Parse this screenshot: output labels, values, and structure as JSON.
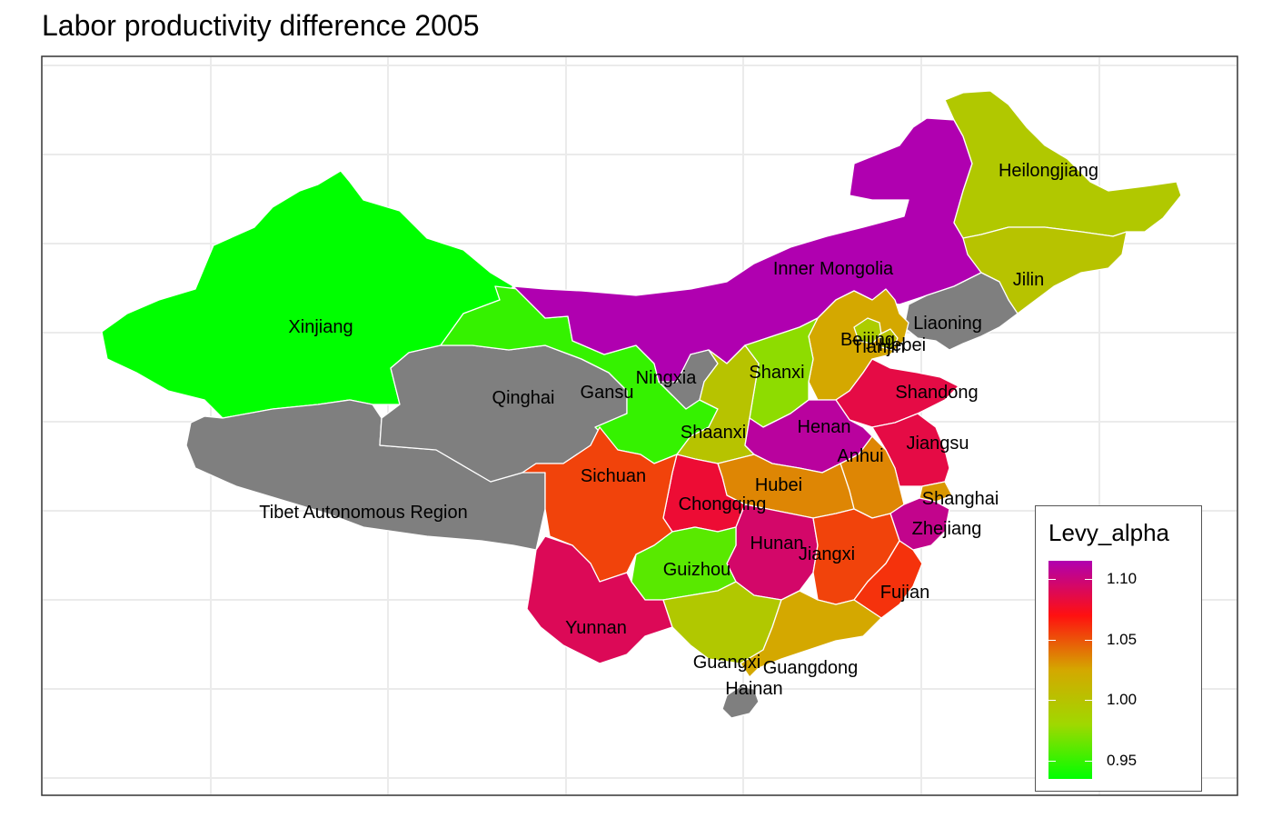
{
  "title": "Labor productivity difference 2005",
  "legend": {
    "title": "Levy_alpha",
    "ticks": [
      "1.10",
      "1.05",
      "1.00",
      "0.95"
    ],
    "tick_values": [
      1.1,
      1.05,
      1.0,
      0.95
    ],
    "min": 0.935,
    "max": 1.115,
    "stops": [
      "#00ff00",
      "#a0d800",
      "#d4a800",
      "#ff1010",
      "#b000b0"
    ],
    "na_color": "#7f7f7f"
  },
  "provinces": [
    {
      "name": "Xinjiang",
      "value": 0.935
    },
    {
      "name": "Tibet Autonomous Region",
      "value": null
    },
    {
      "name": "Qinghai",
      "value": null
    },
    {
      "name": "Gansu",
      "value": 0.95
    },
    {
      "name": "Inner Mongolia",
      "value": 1.115
    },
    {
      "name": "Heilongjiang",
      "value": 0.995
    },
    {
      "name": "Jilin",
      "value": 1.0
    },
    {
      "name": "Liaoning",
      "value": null
    },
    {
      "name": "Ningxia",
      "value": null
    },
    {
      "name": "Shaanxi",
      "value": 1.0
    },
    {
      "name": "Shanxi",
      "value": 0.975
    },
    {
      "name": "Hebei",
      "value": 1.025
    },
    {
      "name": "Beijing",
      "value": 0.99
    },
    {
      "name": "Tianjin",
      "value": 1.0
    },
    {
      "name": "Shandong",
      "value": 1.085
    },
    {
      "name": "Henan",
      "value": 1.11
    },
    {
      "name": "Jiangsu",
      "value": 1.085
    },
    {
      "name": "Anhui",
      "value": 1.035
    },
    {
      "name": "Shanghai",
      "value": 1.03
    },
    {
      "name": "Zhejiang",
      "value": 1.105
    },
    {
      "name": "Hubei",
      "value": 1.035
    },
    {
      "name": "Sichuan",
      "value": 1.055
    },
    {
      "name": "Chongqing",
      "value": 1.08
    },
    {
      "name": "Hunan",
      "value": 1.095
    },
    {
      "name": "Jiangxi",
      "value": 1.055
    },
    {
      "name": "Fujian",
      "value": 1.06
    },
    {
      "name": "Guizhou",
      "value": 0.96
    },
    {
      "name": "Yunnan",
      "value": 1.09
    },
    {
      "name": "Guangxi",
      "value": 0.995
    },
    {
      "name": "Guangdong",
      "value": 1.025
    },
    {
      "name": "Hainan",
      "value": null
    }
  ]
}
